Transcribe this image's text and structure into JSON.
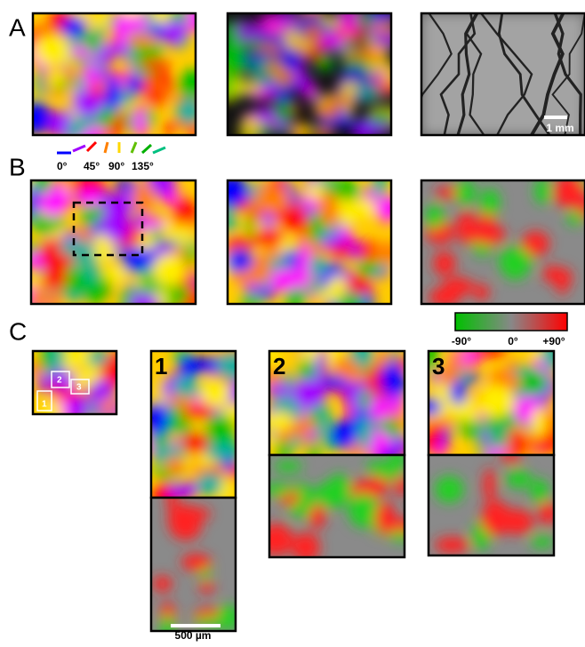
{
  "panels": {
    "a": "A",
    "b": "B",
    "c": "C"
  },
  "orientation_legend": [
    "0°",
    "45°",
    "90°",
    "135°"
  ],
  "scale_bar_a": "1 mm",
  "difference_scale": [
    "-90°",
    "0°",
    "+90°"
  ],
  "inset_labels": [
    "1",
    "2",
    "3"
  ],
  "zoom_labels": [
    "1",
    "2",
    "3"
  ],
  "scale_bar_c": "500 µm"
}
